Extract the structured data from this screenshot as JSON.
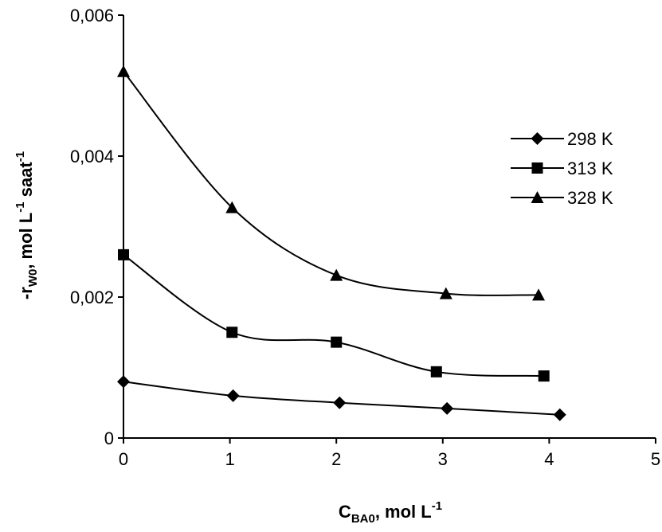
{
  "chart_data": {
    "type": "line",
    "xlabel": {
      "main": "C",
      "sub": "BA0",
      "rest": ", mol L",
      "sup": "-1"
    },
    "ylabel": {
      "pre": "-r",
      "sub": "W0",
      "mid": ", mol L",
      "sup1": "-1",
      "mid2": " saat",
      "sup2": "-1"
    },
    "xlim": [
      0,
      5
    ],
    "ylim": [
      0,
      0.006
    ],
    "x_ticks": [
      "0",
      "1",
      "2",
      "3",
      "4",
      "5"
    ],
    "y_ticks": [
      "0",
      "0,002",
      "0,004",
      "0,006"
    ],
    "grid": false,
    "legend_position": "right",
    "series": [
      {
        "name": "298 K",
        "marker": "diamond",
        "x": [
          0,
          1.03,
          2.03,
          3.04,
          4.1
        ],
        "y": [
          0.0008,
          0.0006,
          0.0005,
          0.00042,
          0.00033
        ]
      },
      {
        "name": "313 K",
        "marker": "square",
        "x": [
          0,
          1.02,
          2.0,
          2.94,
          3.95
        ],
        "y": [
          0.0026,
          0.0015,
          0.00136,
          0.00094,
          0.00088
        ]
      },
      {
        "name": "328 K",
        "marker": "triangle",
        "x": [
          0,
          1.02,
          2.0,
          3.03,
          3.9
        ],
        "y": [
          0.0052,
          0.00327,
          0.00231,
          0.00205,
          0.00203
        ]
      }
    ]
  }
}
